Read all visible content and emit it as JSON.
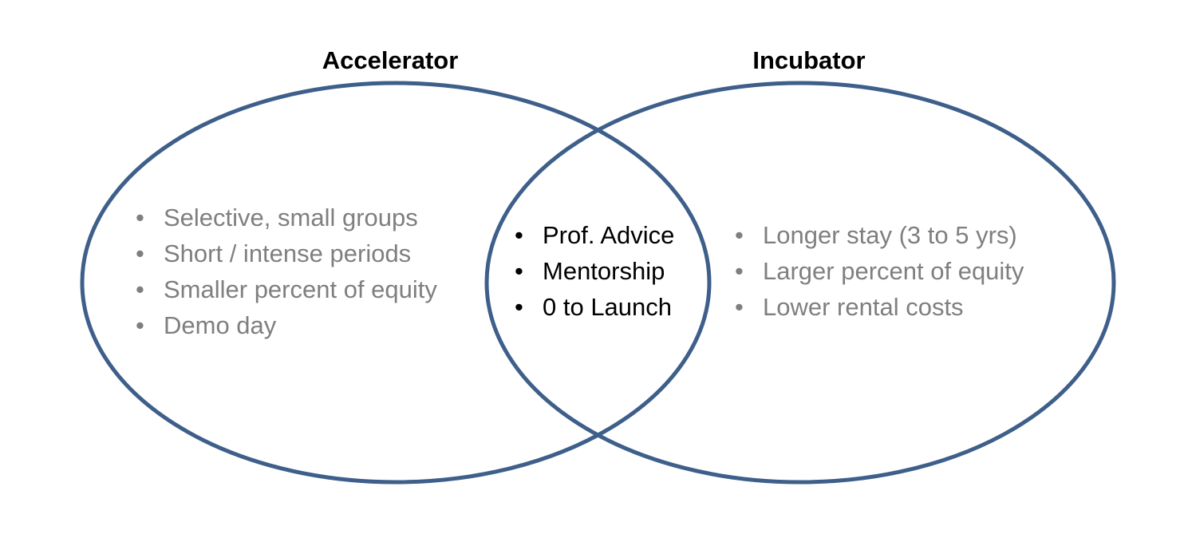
{
  "diagram": {
    "type": "venn",
    "outline_color": "#3e5f8a",
    "sets": {
      "left": {
        "title": "Accelerator",
        "items": [
          "Selective, small groups",
          "Short / intense periods",
          "Smaller percent of equity",
          "Demo day"
        ]
      },
      "right": {
        "title": "Incubator",
        "items": [
          "Longer stay (3 to 5 yrs)",
          "Larger percent of equity",
          "Lower rental costs"
        ]
      },
      "overlap": {
        "items": [
          "Prof. Advice",
          "Mentorship",
          "0 to Launch"
        ]
      }
    },
    "text_colors": {
      "exclusive_items": "#7f7f7f",
      "shared_items": "#000000",
      "titles": "#000000"
    }
  }
}
